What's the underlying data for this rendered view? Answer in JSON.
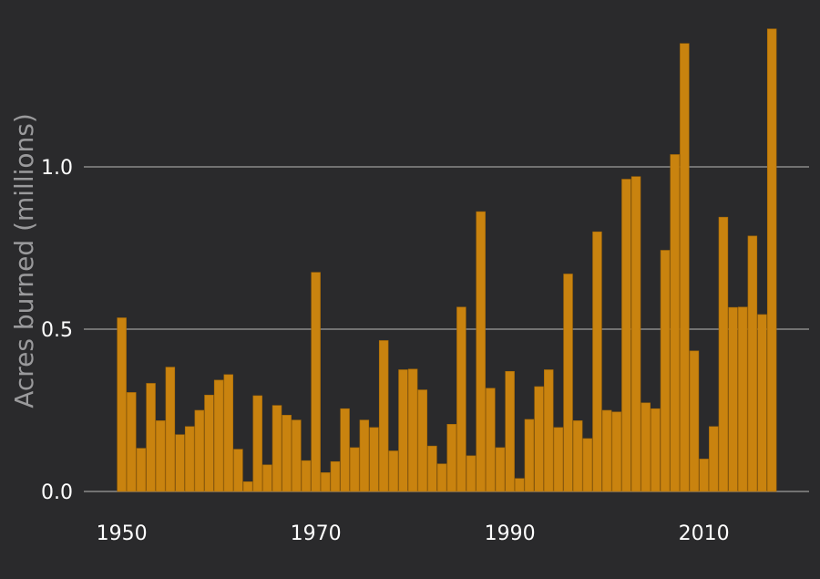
{
  "colors": {
    "background": "#2a2a2c",
    "bar": "#c9830f",
    "bar_edge": "#a86a05",
    "grid": "#8a8a8a",
    "tick_text": "#ffffff",
    "ylabel_text": "#9a9a9c"
  },
  "chart_data": {
    "type": "bar",
    "ylabel": "Acres burned (millions)",
    "xlabel": "",
    "ylim": [
      0,
      1.43
    ],
    "yticks": [
      0.0,
      0.5,
      1.0
    ],
    "ytick_labels": [
      "0.0",
      "0.5",
      "1.0"
    ],
    "xticks": [
      1950,
      1970,
      1990,
      2010
    ],
    "xtick_labels": [
      "1950",
      "1970",
      "1990",
      "2010"
    ],
    "grid": "horizontal",
    "x": [
      1950,
      1951,
      1952,
      1953,
      1954,
      1955,
      1956,
      1957,
      1958,
      1959,
      1960,
      1961,
      1962,
      1963,
      1964,
      1965,
      1966,
      1967,
      1968,
      1969,
      1970,
      1971,
      1972,
      1973,
      1974,
      1975,
      1976,
      1977,
      1978,
      1979,
      1980,
      1981,
      1982,
      1983,
      1984,
      1985,
      1986,
      1987,
      1988,
      1989,
      1990,
      1991,
      1992,
      1993,
      1994,
      1995,
      1996,
      1997,
      1998,
      1999,
      2000,
      2001,
      2002,
      2003,
      2004,
      2005,
      2006,
      2007,
      2008,
      2009,
      2010,
      2011,
      2012,
      2013,
      2014,
      2015,
      2016,
      2017
    ],
    "values": [
      0.535,
      0.305,
      0.133,
      0.333,
      0.218,
      0.383,
      0.175,
      0.2,
      0.25,
      0.297,
      0.343,
      0.36,
      0.13,
      0.03,
      0.295,
      0.082,
      0.265,
      0.235,
      0.22,
      0.095,
      0.675,
      0.058,
      0.092,
      0.255,
      0.135,
      0.22,
      0.197,
      0.465,
      0.125,
      0.375,
      0.377,
      0.313,
      0.14,
      0.085,
      0.207,
      0.568,
      0.11,
      0.862,
      0.318,
      0.135,
      0.37,
      0.04,
      0.222,
      0.323,
      0.375,
      0.197,
      0.67,
      0.218,
      0.163,
      0.8,
      0.25,
      0.245,
      0.962,
      0.97,
      0.273,
      0.255,
      0.743,
      1.038,
      1.38,
      0.433,
      0.1,
      0.2,
      0.845,
      0.567,
      0.568,
      0.787,
      0.545,
      1.425
    ]
  }
}
